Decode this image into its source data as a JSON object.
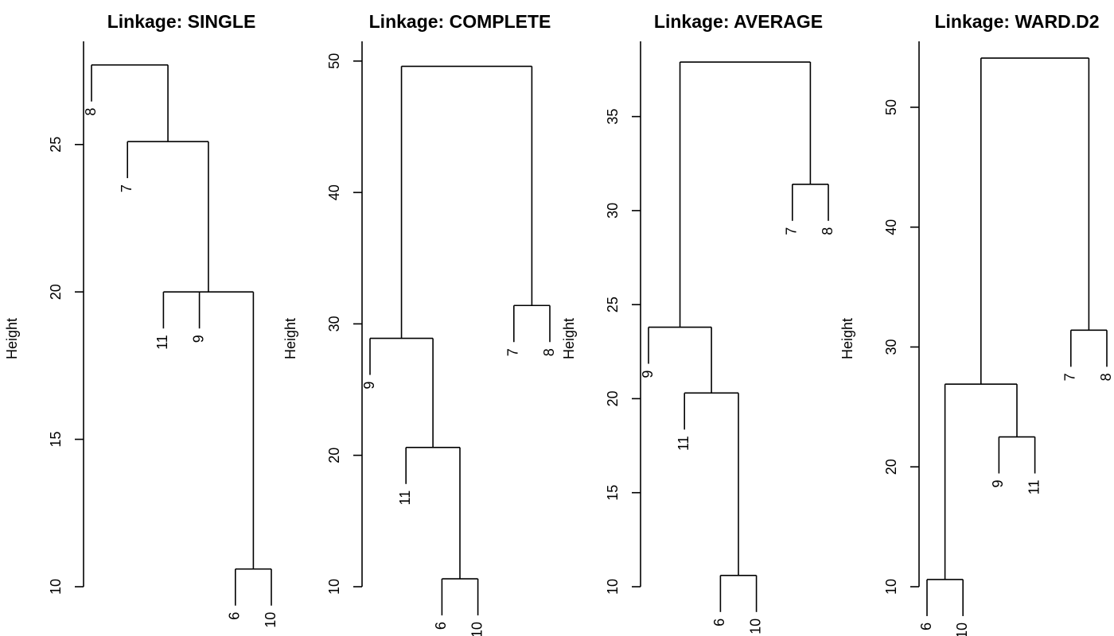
{
  "chart_data": [
    {
      "type": "dendrogram",
      "title": "Linkage: SINGLE",
      "ylabel": "Height",
      "ylim": [
        10,
        28.5
      ],
      "yticks": [
        10,
        15,
        20,
        25
      ],
      "leaves": [
        "8",
        "7",
        "11",
        "9",
        "6",
        "10"
      ],
      "merges": [
        {
          "children": [
            "6",
            "10"
          ],
          "height": 10.6
        },
        {
          "children": [
            "11",
            "9",
            "6+10"
          ],
          "height": 20.0
        },
        {
          "children": [
            "7",
            "11+9+6+10"
          ],
          "height": 25.1
        },
        {
          "children": [
            "8",
            "7+11+9+6+10"
          ],
          "height": 27.7
        }
      ]
    },
    {
      "type": "dendrogram",
      "title": "Linkage: COMPLETE",
      "ylabel": "Height",
      "ylim": [
        10,
        51.5
      ],
      "yticks": [
        10,
        20,
        30,
        40,
        50
      ],
      "leaves": [
        "9",
        "11",
        "6",
        "10",
        "7",
        "8"
      ],
      "merges": [
        {
          "children": [
            "6",
            "10"
          ],
          "height": 10.6
        },
        {
          "children": [
            "11",
            "6+10"
          ],
          "height": 20.6
        },
        {
          "children": [
            "9",
            "11+6+10"
          ],
          "height": 28.9
        },
        {
          "children": [
            "7",
            "8"
          ],
          "height": 31.4
        },
        {
          "children": [
            "9+11+6+10",
            "7+8"
          ],
          "height": 49.6
        }
      ]
    },
    {
      "type": "dendrogram",
      "title": "Linkage: AVERAGE",
      "ylabel": "Height",
      "ylim": [
        10,
        39
      ],
      "yticks": [
        10,
        15,
        20,
        25,
        30,
        35
      ],
      "leaves": [
        "9",
        "11",
        "6",
        "10",
        "7",
        "8"
      ],
      "merges": [
        {
          "children": [
            "6",
            "10"
          ],
          "height": 10.6
        },
        {
          "children": [
            "11",
            "6+10"
          ],
          "height": 20.3
        },
        {
          "children": [
            "9",
            "11+6+10"
          ],
          "height": 23.8
        },
        {
          "children": [
            "7",
            "8"
          ],
          "height": 31.4
        },
        {
          "children": [
            "9+11+6+10",
            "7+8"
          ],
          "height": 37.9
        }
      ]
    },
    {
      "type": "dendrogram",
      "title": "Linkage: WARD.D2",
      "ylabel": "Height",
      "ylim": [
        10,
        55.5
      ],
      "yticks": [
        10,
        20,
        30,
        40,
        50
      ],
      "leaves": [
        "6",
        "10",
        "9",
        "11",
        "7",
        "8"
      ],
      "merges": [
        {
          "children": [
            "6",
            "10"
          ],
          "height": 10.6
        },
        {
          "children": [
            "9",
            "11"
          ],
          "height": 22.5
        },
        {
          "children": [
            "6+10",
            "9+11"
          ],
          "height": 26.9
        },
        {
          "children": [
            "7",
            "8"
          ],
          "height": 31.4
        },
        {
          "children": [
            "6+10+9+11",
            "7+8"
          ],
          "height": 54.1
        }
      ]
    }
  ]
}
